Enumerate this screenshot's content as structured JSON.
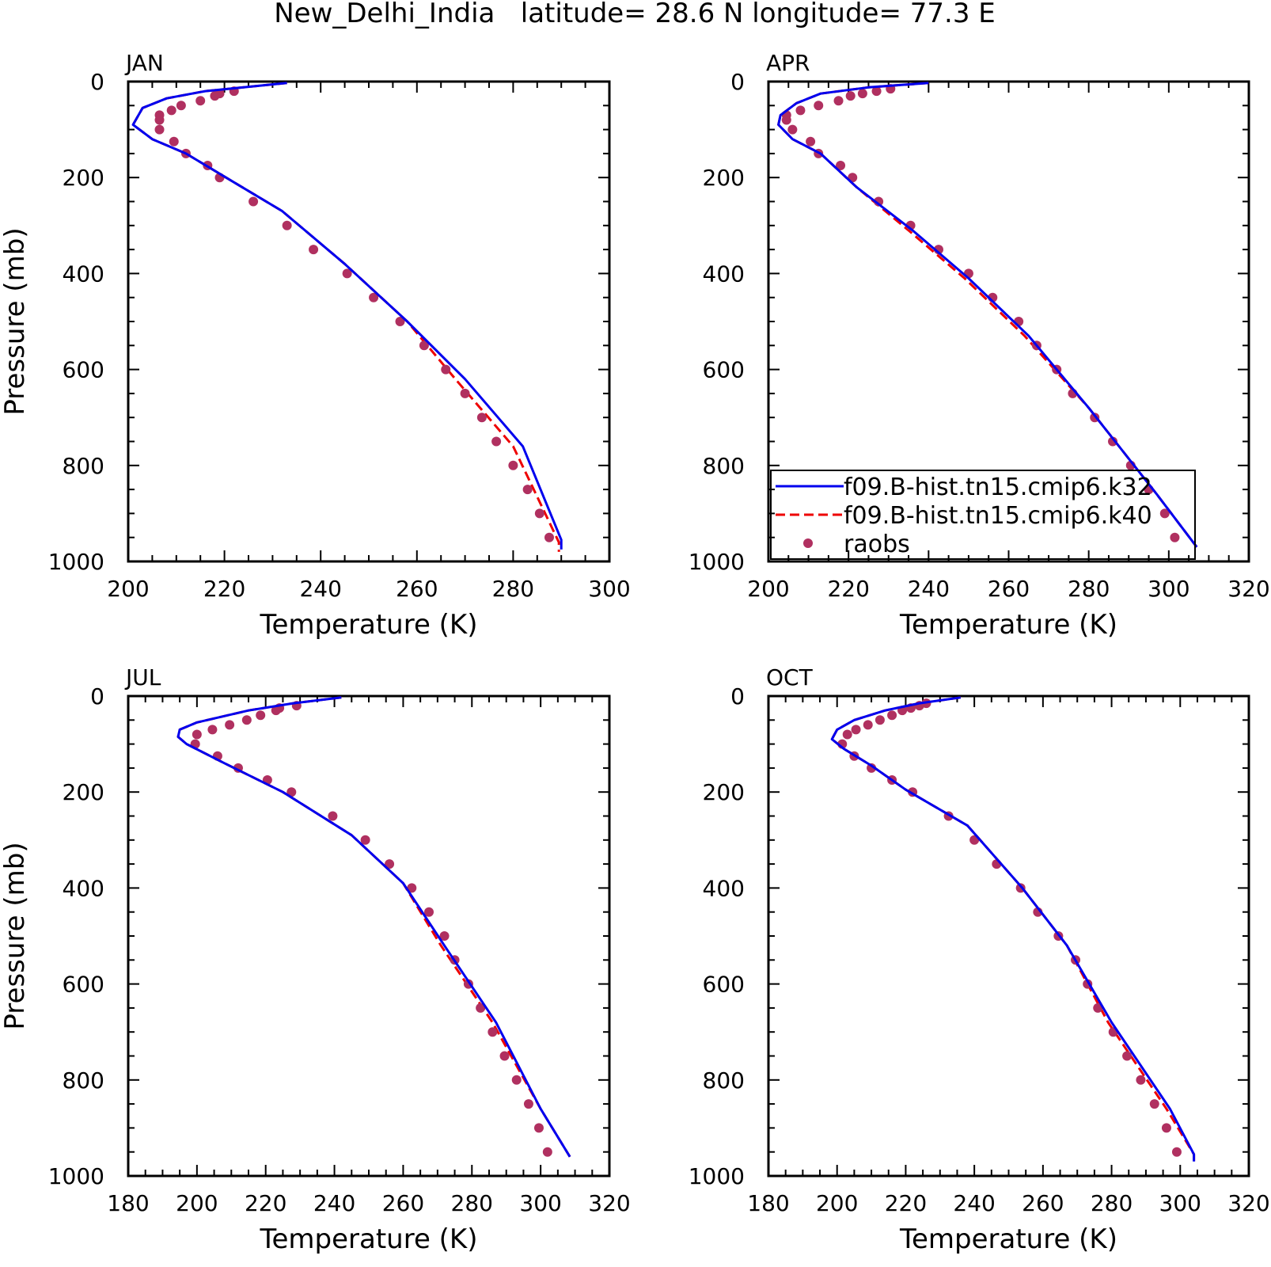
{
  "title": "New_Delhi_India   latitude= 28.6 N longitude= 77.3 E",
  "colors": {
    "k32": "#0000ee",
    "k40": "#ee0000",
    "raobs": "#b03060",
    "axis": "#000000"
  },
  "chart_data": [
    {
      "type": "line",
      "panel_label": "JAN",
      "xlabel": "Temperature (K)",
      "ylabel": "Pressure (mb)",
      "xlim": [
        200,
        300
      ],
      "xticks": [
        200,
        220,
        240,
        260,
        280,
        300
      ],
      "ylim": [
        0,
        1000
      ],
      "yticks": [
        0,
        200,
        400,
        600,
        800,
        1000
      ],
      "y_inverted": true,
      "series": [
        {
          "name": "f09.B-hist.tn15.cmip6.k32",
          "style": "solid",
          "x": [
            233,
            216,
            208,
            203,
            201,
            205,
            212,
            222,
            232,
            245,
            258,
            270,
            282,
            290,
            290
          ],
          "y": [
            3,
            20,
            35,
            55,
            90,
            120,
            150,
            210,
            270,
            380,
            500,
            620,
            760,
            955,
            975
          ]
        },
        {
          "name": "f09.B-hist.tn15.cmip6.k40",
          "style": "dashed",
          "x": [
            233,
            216,
            208,
            203,
            201,
            205,
            212,
            222,
            232,
            245,
            258,
            268,
            280,
            289.5,
            289.5
          ],
          "y": [
            3,
            20,
            35,
            55,
            90,
            120,
            150,
            210,
            270,
            380,
            500,
            620,
            760,
            960,
            980
          ]
        },
        {
          "name": "raobs",
          "style": "markers",
          "x": [
            222,
            219,
            218,
            215,
            211,
            209,
            206.5,
            206.5,
            206.5,
            209.5,
            212,
            216.5,
            219,
            226,
            233,
            238.5,
            245.5,
            251,
            256.5,
            261.5,
            266,
            270,
            273.5,
            276.5,
            280,
            283,
            285.5,
            287.5
          ],
          "y": [
            20,
            25,
            30,
            40,
            50,
            60,
            70,
            80,
            100,
            125,
            150,
            175,
            200,
            250,
            300,
            350,
            400,
            450,
            500,
            550,
            600,
            650,
            700,
            750,
            800,
            850,
            900,
            950
          ]
        }
      ]
    },
    {
      "type": "line",
      "panel_label": "APR",
      "xlabel": "Temperature (K)",
      "ylabel": "",
      "xlim": [
        200,
        320
      ],
      "xticks": [
        200,
        220,
        240,
        260,
        280,
        300,
        320
      ],
      "ylim": [
        0,
        1000
      ],
      "yticks": [
        0,
        200,
        400,
        600,
        800,
        1000
      ],
      "y_inverted": true,
      "series": [
        {
          "name": "f09.B-hist.tn15.cmip6.k32",
          "style": "solid",
          "x": [
            240,
            225,
            213,
            207,
            203,
            202.5,
            206,
            213,
            222,
            236,
            250,
            265,
            280,
            297,
            307
          ],
          "y": [
            3,
            12,
            25,
            45,
            70,
            90,
            120,
            150,
            220,
            310,
            410,
            530,
            680,
            860,
            970
          ]
        },
        {
          "name": "f09.B-hist.tn15.cmip6.k40",
          "style": "dashed",
          "x": [
            240,
            225,
            213,
            207,
            203,
            202.5,
            206,
            213,
            222,
            235,
            249,
            264,
            280,
            297,
            307
          ],
          "y": [
            3,
            12,
            25,
            45,
            70,
            90,
            120,
            150,
            220,
            310,
            410,
            530,
            680,
            860,
            970
          ]
        },
        {
          "name": "raobs",
          "style": "markers",
          "x": [
            230.5,
            227,
            223.5,
            220.5,
            217.5,
            212.5,
            208,
            204.5,
            204.5,
            206,
            210.5,
            212.5,
            218,
            221,
            227.5,
            235.5,
            242.5,
            250,
            256,
            262.5,
            267,
            272,
            276,
            281.5,
            286,
            290.5,
            295,
            299,
            301.5
          ],
          "y": [
            15,
            20,
            25,
            30,
            40,
            50,
            60,
            70,
            80,
            100,
            125,
            150,
            175,
            200,
            250,
            300,
            350,
            400,
            450,
            500,
            550,
            600,
            650,
            700,
            750,
            800,
            850,
            900,
            950
          ]
        }
      ]
    },
    {
      "type": "line",
      "panel_label": "JUL",
      "xlabel": "Temperature (K)",
      "ylabel": "Pressure (mb)",
      "xlim": [
        180,
        320
      ],
      "xticks": [
        180,
        200,
        220,
        240,
        260,
        280,
        300,
        320
      ],
      "ylim": [
        0,
        1000
      ],
      "yticks": [
        0,
        200,
        400,
        600,
        800,
        1000
      ],
      "y_inverted": true,
      "series": [
        {
          "name": "f09.B-hist.tn15.cmip6.k32",
          "style": "solid",
          "x": [
            242,
            228,
            215,
            200,
            195,
            194.5,
            197,
            208,
            225,
            245,
            260,
            272,
            287,
            300,
            308.5
          ],
          "y": [
            3,
            15,
            30,
            55,
            70,
            85,
            100,
            140,
            200,
            290,
            390,
            520,
            680,
            860,
            960
          ]
        },
        {
          "name": "f09.B-hist.tn15.cmip6.k40",
          "style": "dashed",
          "x": [
            242,
            228,
            215,
            200,
            195,
            194.5,
            197,
            208,
            225,
            245,
            260,
            271,
            286,
            300,
            308.5
          ],
          "y": [
            3,
            15,
            30,
            55,
            70,
            85,
            100,
            140,
            200,
            290,
            390,
            520,
            680,
            860,
            960
          ]
        },
        {
          "name": "raobs",
          "style": "markers",
          "x": [
            229,
            224,
            223,
            218.5,
            214.5,
            209.5,
            204.5,
            200,
            199.5,
            206,
            212,
            220.5,
            227.5,
            239.5,
            249,
            256,
            262.5,
            267.5,
            272,
            275,
            279,
            282.5,
            286,
            289.5,
            293,
            296.5,
            299.5,
            302
          ],
          "y": [
            20,
            25,
            30,
            40,
            50,
            60,
            70,
            80,
            100,
            125,
            150,
            175,
            200,
            250,
            300,
            350,
            400,
            450,
            500,
            550,
            600,
            650,
            700,
            750,
            800,
            850,
            900,
            950
          ]
        }
      ]
    },
    {
      "type": "line",
      "panel_label": "OCT",
      "xlabel": "Temperature (K)",
      "ylabel": "",
      "xlim": [
        180,
        320
      ],
      "xticks": [
        180,
        200,
        220,
        240,
        260,
        280,
        300,
        320
      ],
      "ylim": [
        0,
        1000
      ],
      "yticks": [
        0,
        200,
        400,
        600,
        800,
        1000
      ],
      "y_inverted": true,
      "series": [
        {
          "name": "f09.B-hist.tn15.cmip6.k32",
          "style": "solid",
          "x": [
            236,
            224,
            214,
            205,
            200,
            198.5,
            202,
            210,
            220,
            238,
            254,
            267,
            280,
            297,
            304,
            304
          ],
          "y": [
            3,
            15,
            30,
            50,
            70,
            90,
            110,
            145,
            195,
            270,
            400,
            520,
            680,
            860,
            955,
            970
          ]
        },
        {
          "name": "f09.B-hist.tn15.cmip6.k40",
          "style": "dashed",
          "x": [
            236,
            224,
            214,
            205,
            200,
            198.5,
            202,
            210,
            220,
            238,
            254,
            267,
            279,
            296,
            304,
            304
          ],
          "y": [
            3,
            15,
            30,
            50,
            70,
            90,
            110,
            145,
            195,
            270,
            400,
            520,
            680,
            860,
            955,
            970
          ]
        },
        {
          "name": "raobs",
          "style": "markers",
          "x": [
            226,
            224,
            221.5,
            219,
            216,
            212.5,
            209,
            205.5,
            203,
            201.5,
            205,
            210,
            216,
            222,
            232.5,
            240,
            246.5,
            253.5,
            258.5,
            264.5,
            269.5,
            273,
            276,
            280.5,
            284.5,
            288.5,
            292.5,
            296,
            299
          ],
          "y": [
            15,
            20,
            25,
            30,
            40,
            50,
            60,
            70,
            80,
            100,
            125,
            150,
            175,
            200,
            250,
            300,
            350,
            400,
            450,
            500,
            550,
            600,
            650,
            700,
            750,
            800,
            850,
            900,
            950
          ]
        }
      ]
    }
  ],
  "legend": {
    "panel": 1,
    "items": [
      {
        "label": "f09.B-hist.tn15.cmip6.k32",
        "style": "solid"
      },
      {
        "label": "f09.B-hist.tn15.cmip6.k40",
        "style": "dashed"
      },
      {
        "label": "raobs",
        "style": "markers"
      }
    ]
  }
}
